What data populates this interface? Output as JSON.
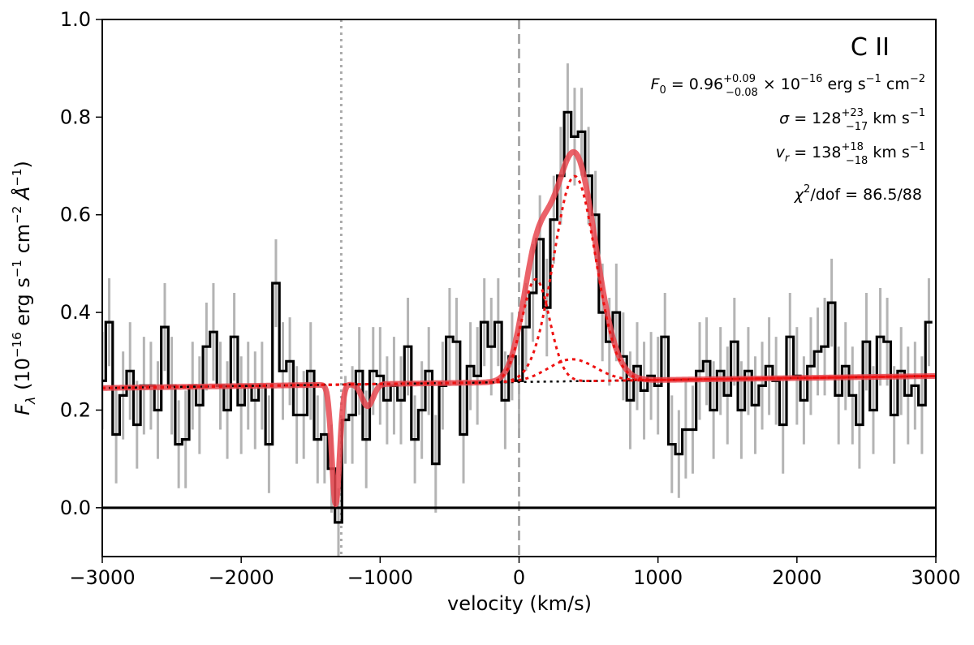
{
  "chart_data": {
    "type": "line",
    "xlabel": "velocity (km/s)",
    "ylabel": {
      "F": "F",
      "sub": "λ",
      "open": " (10",
      "exp1": "−16",
      "mid1": " erg s",
      "exp2": "−1",
      "mid2": " cm",
      "exp3": "−2",
      "mid3": " Å",
      "exp4": "−1",
      "close": ")"
    },
    "xlim": [
      -3000,
      3000
    ],
    "ylim": [
      -0.1,
      1.0
    ],
    "xticks": [
      -3000,
      -2000,
      -1000,
      0,
      1000,
      2000,
      3000
    ],
    "xtick_labels": [
      "−3000",
      "−2000",
      "−1000",
      "0",
      "1000",
      "2000",
      "3000"
    ],
    "yticks": [
      0.0,
      0.2,
      0.4,
      0.6,
      0.8,
      1.0
    ],
    "ytick_labels": [
      "0.0",
      "0.2",
      "0.4",
      "0.6",
      "0.8",
      "1.0"
    ],
    "grid": false,
    "reference_lines": [
      {
        "x": 0,
        "style": "dashed",
        "color": "#aaaaaa"
      },
      {
        "x": -1280,
        "style": "dotted",
        "color": "#aaaaaa"
      },
      {
        "y": 0,
        "style": "solid",
        "color": "#000000"
      }
    ],
    "annotations": {
      "ion": "C II",
      "flux": {
        "lhs": "F",
        "sub": "0",
        "eq": " = 0.96",
        "up": "+0.09",
        "dn": "−0.08",
        "times": " × 10",
        "exp": "−16",
        "units": " erg s",
        "e1": "−1",
        "u2": " cm",
        "e2": "−2"
      },
      "sigma": {
        "lhs": "σ",
        "eq": " = 128",
        "up": "+23",
        "dn": "−17",
        "units": " km s",
        "e1": "−1"
      },
      "vr": {
        "lhs": "v",
        "sub": "r",
        "eq": " = 138",
        "up": "+18",
        "dn": "−18",
        "units": " km s",
        "e1": "−1"
      },
      "chi2": {
        "lhs": "χ",
        "exp": "2",
        "rest": "/dof = 86.5/88"
      }
    },
    "colors": {
      "data": "#000000",
      "error": "#b4b4b4",
      "model": "#e8464f",
      "component": "#ee1111",
      "continuum": "#000000"
    },
    "series": [
      {
        "style": "step",
        "x": [
          -3000,
          -2950,
          -2900,
          -2850,
          -2800,
          -2750,
          -2700,
          -2650,
          -2600,
          -2550,
          -2500,
          -2450,
          -2400,
          -2350,
          -2300,
          -2250,
          -2200,
          -2150,
          -2100,
          -2050,
          -2000,
          -1950,
          -1900,
          -1850,
          -1800,
          -1750,
          -1700,
          -1650,
          -1600,
          -1550,
          -1500,
          -1450,
          -1400,
          -1350,
          -1300,
          -1250,
          -1200,
          -1150,
          -1100,
          -1050,
          -1000,
          -950,
          -900,
          -850,
          -800,
          -750,
          -700,
          -650,
          -600,
          -550,
          -500,
          -450,
          -400,
          -350,
          -300,
          -250,
          -200,
          -150,
          -100,
          -50,
          0,
          50,
          100,
          150,
          200,
          250,
          300,
          350,
          400,
          450,
          500,
          550,
          600,
          650,
          700,
          750,
          800,
          850,
          900,
          950,
          1000,
          1050,
          1100,
          1150,
          1200,
          1250,
          1300,
          1350,
          1400,
          1450,
          1500,
          1550,
          1600,
          1650,
          1700,
          1750,
          1800,
          1850,
          1900,
          1950,
          2000,
          2050,
          2100,
          2150,
          2200,
          2250,
          2300,
          2350,
          2400,
          2450,
          2500,
          2550,
          2600,
          2650,
          2700,
          2750,
          2800,
          2850,
          2900,
          2950
        ],
        "y": [
          0.26,
          0.38,
          0.15,
          0.23,
          0.28,
          0.17,
          0.25,
          0.25,
          0.2,
          0.37,
          0.25,
          0.13,
          0.14,
          0.25,
          0.21,
          0.33,
          0.36,
          0.25,
          0.2,
          0.35,
          0.21,
          0.25,
          0.22,
          0.25,
          0.13,
          0.46,
          0.28,
          0.3,
          0.19,
          0.19,
          0.28,
          0.14,
          0.15,
          0.08,
          -0.03,
          0.18,
          0.19,
          0.28,
          0.14,
          0.28,
          0.27,
          0.22,
          0.25,
          0.22,
          0.33,
          0.14,
          0.2,
          0.28,
          0.09,
          0.25,
          0.35,
          0.34,
          0.15,
          0.29,
          0.27,
          0.38,
          0.33,
          0.38,
          0.22,
          0.31,
          0.26,
          0.37,
          0.44,
          0.55,
          0.41,
          0.59,
          0.68,
          0.81,
          0.76,
          0.77,
          0.68,
          0.6,
          0.4,
          0.34,
          0.4,
          0.31,
          0.22,
          0.29,
          0.24,
          0.27,
          0.25,
          0.35,
          0.13,
          0.11,
          0.16,
          0.16,
          0.28,
          0.3,
          0.2,
          0.28,
          0.23,
          0.34,
          0.2,
          0.28,
          0.21,
          0.25,
          0.29,
          0.26,
          0.17,
          0.35,
          0.27,
          0.22,
          0.29,
          0.32,
          0.33,
          0.42,
          0.23,
          0.29,
          0.23,
          0.17,
          0.34,
          0.2,
          0.35,
          0.34,
          0.19,
          0.28,
          0.23,
          0.25,
          0.21,
          0.38
        ]
      },
      {
        "style": "errorbars",
        "err": [
          0.1,
          0.09,
          0.1,
          0.09,
          0.1,
          0.09,
          0.1,
          0.09,
          0.1,
          0.09,
          0.1,
          0.09,
          0.1,
          0.09,
          0.1,
          0.09,
          0.1,
          0.09,
          0.1,
          0.09,
          0.1,
          0.09,
          0.1,
          0.09,
          0.1,
          0.09,
          0.1,
          0.09,
          0.1,
          0.09,
          0.1,
          0.09,
          0.1,
          0.09,
          0.07,
          0.09,
          0.1,
          0.09,
          0.1,
          0.09,
          0.1,
          0.09,
          0.1,
          0.09,
          0.1,
          0.09,
          0.1,
          0.09,
          0.1,
          0.09,
          0.1,
          0.09,
          0.1,
          0.09,
          0.1,
          0.09,
          0.1,
          0.09,
          0.1,
          0.09,
          0.1,
          0.09,
          0.1,
          0.09,
          0.1,
          0.09,
          0.1,
          0.1,
          0.1,
          0.09,
          0.1,
          0.09,
          0.1,
          0.09,
          0.1,
          0.09,
          0.1,
          0.09,
          0.1,
          0.09,
          0.1,
          0.09,
          0.1,
          0.09,
          0.1,
          0.09,
          0.1,
          0.09,
          0.1,
          0.09,
          0.1,
          0.09,
          0.1,
          0.09,
          0.1,
          0.09,
          0.1,
          0.09,
          0.1,
          0.09,
          0.1,
          0.09,
          0.1,
          0.09,
          0.1,
          0.09,
          0.1,
          0.09,
          0.1,
          0.09,
          0.1,
          0.09,
          0.1,
          0.09,
          0.1,
          0.09,
          0.1,
          0.09,
          0.1,
          0.09
        ]
      },
      {
        "style": "model",
        "continuum": {
          "a": 0.2575,
          "b": 4.1e-06
        },
        "gaussians": [
          {
            "amp": 0.21,
            "mu": 120,
            "sigma": 100
          },
          {
            "amp": 0.42,
            "mu": 400,
            "sigma": 150
          },
          {
            "amp": 0.045,
            "mu": 380,
            "sigma": 170
          }
        ],
        "absorptions": [
          {
            "amp": 0.245,
            "mu": -1320,
            "sigma": 28
          },
          {
            "amp": 0.045,
            "mu": -1090,
            "sigma": 40
          }
        ]
      }
    ]
  }
}
